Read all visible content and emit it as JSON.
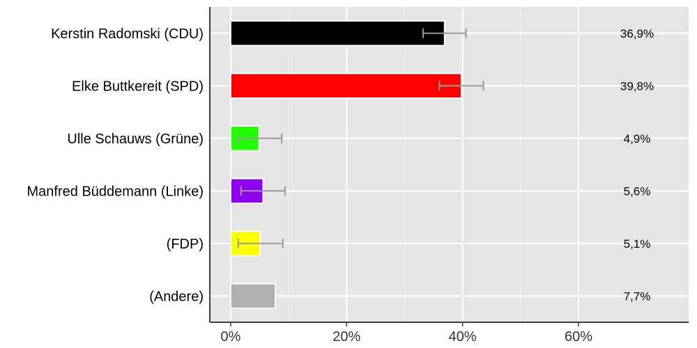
{
  "chart_data": {
    "type": "bar",
    "orientation": "horizontal",
    "categories": [
      "Kerstin Radomski (CDU)",
      "Elke Buttkereit (SPD)",
      "Ulle Schauws (Grüne)",
      "Manfred Büddemann (Linke)",
      "(FDP)",
      "(Andere)"
    ],
    "values": [
      36.9,
      39.8,
      4.9,
      5.6,
      5.1,
      7.7
    ],
    "value_labels": [
      "36,9%",
      "39,8%",
      "4,9%",
      "5,6%",
      "5,1%",
      "7,7%"
    ],
    "error_bars": [
      {
        "low": 33.2,
        "high": 40.6
      },
      {
        "low": 36.0,
        "high": 43.6
      },
      {
        "low": 1.2,
        "high": 8.8
      },
      {
        "low": 1.8,
        "high": 9.4
      },
      {
        "low": 1.3,
        "high": 9.0
      },
      null
    ],
    "colors": [
      "#000000",
      "#ff0000",
      "#22ff00",
      "#9000f0",
      "#ffff00",
      "#b0b0b0"
    ],
    "xticks": [
      0,
      20,
      40,
      60
    ],
    "xtick_labels": [
      "0%",
      "20%",
      "40%",
      "60%"
    ],
    "xlim": [
      -3.6,
      79
    ],
    "grid": true,
    "background": "#e5e5e5",
    "error_bar_color": "#999999",
    "title": "",
    "xlabel": "",
    "ylabel": ""
  }
}
